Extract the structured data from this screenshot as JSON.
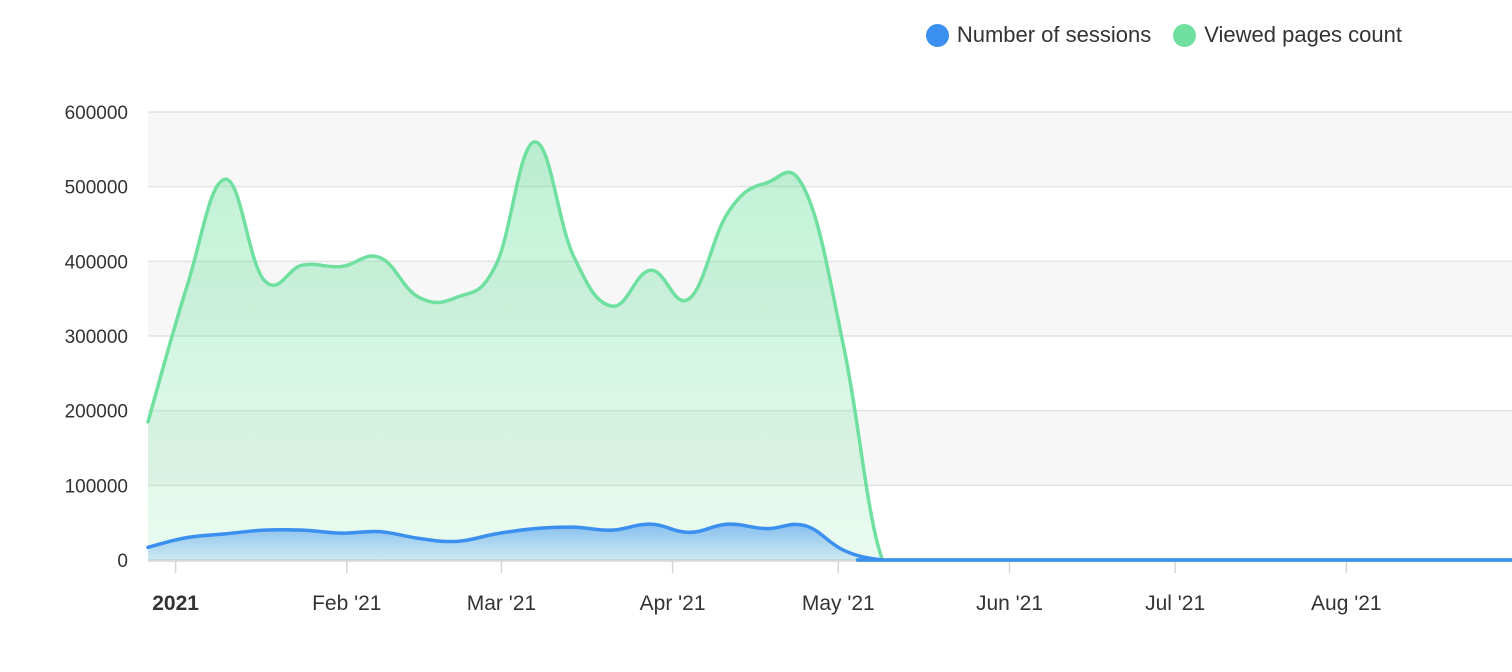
{
  "legend": {
    "items": [
      {
        "label": "Number of sessions",
        "color": "#3b8fef"
      },
      {
        "label": "Viewed pages count",
        "color": "#6fe0a0"
      }
    ]
  },
  "chart_data": {
    "type": "area",
    "y_ticks": [
      "0",
      "100000",
      "200000",
      "300000",
      "400000",
      "500000",
      "600000"
    ],
    "ylim": [
      0,
      600000
    ],
    "x_tick_labels": [
      {
        "label": "2021",
        "date": "2021-01-01",
        "bold": true
      },
      {
        "label": "Feb '21",
        "date": "2021-02-01"
      },
      {
        "label": "Mar '21",
        "date": "2021-03-01"
      },
      {
        "label": "Apr '21",
        "date": "2021-04-01"
      },
      {
        "label": "May '21",
        "date": "2021-05-01"
      },
      {
        "label": "Jun '21",
        "date": "2021-06-01"
      },
      {
        "label": "Jul '21",
        "date": "2021-07-01"
      },
      {
        "label": "Aug '21",
        "date": "2021-08-01"
      }
    ],
    "xlim": [
      "2020-12-27",
      "2021-08-31"
    ],
    "grid": true,
    "legend_position": "top-right",
    "series": [
      {
        "name": "Viewed pages count",
        "color": "#6fe0a0",
        "points": [
          [
            "2020-12-27",
            185000
          ],
          [
            "2021-01-03",
            365000
          ],
          [
            "2021-01-10",
            510000
          ],
          [
            "2021-01-17",
            375000
          ],
          [
            "2021-01-24",
            395000
          ],
          [
            "2021-01-31",
            393000
          ],
          [
            "2021-02-07",
            405000
          ],
          [
            "2021-02-14",
            352000
          ],
          [
            "2021-02-21",
            352000
          ],
          [
            "2021-02-28",
            395000
          ],
          [
            "2021-03-07",
            560000
          ],
          [
            "2021-03-14",
            408000
          ],
          [
            "2021-03-21",
            340000
          ],
          [
            "2021-03-28",
            388000
          ],
          [
            "2021-04-04",
            350000
          ],
          [
            "2021-04-11",
            465000
          ],
          [
            "2021-04-18",
            505000
          ],
          [
            "2021-04-25",
            495000
          ],
          [
            "2021-05-02",
            285000
          ],
          [
            "2021-05-09",
            0
          ],
          [
            "2021-05-16",
            0
          ],
          [
            "2021-08-31",
            0
          ]
        ]
      },
      {
        "name": "Number of sessions",
        "color": "#3b8fef",
        "points": [
          [
            "2020-12-27",
            17000
          ],
          [
            "2021-01-03",
            30000
          ],
          [
            "2021-01-10",
            35000
          ],
          [
            "2021-01-17",
            40000
          ],
          [
            "2021-01-24",
            40000
          ],
          [
            "2021-01-31",
            36000
          ],
          [
            "2021-02-07",
            38000
          ],
          [
            "2021-02-14",
            29000
          ],
          [
            "2021-02-21",
            25000
          ],
          [
            "2021-02-28",
            35000
          ],
          [
            "2021-03-07",
            42000
          ],
          [
            "2021-03-14",
            44000
          ],
          [
            "2021-03-21",
            40000
          ],
          [
            "2021-03-28",
            48000
          ],
          [
            "2021-04-04",
            37000
          ],
          [
            "2021-04-11",
            48000
          ],
          [
            "2021-04-18",
            42000
          ],
          [
            "2021-04-25",
            46000
          ],
          [
            "2021-05-02",
            13000
          ],
          [
            "2021-05-09",
            0
          ],
          [
            "2021-05-16",
            0
          ],
          [
            "2021-08-31",
            0
          ]
        ]
      }
    ]
  }
}
